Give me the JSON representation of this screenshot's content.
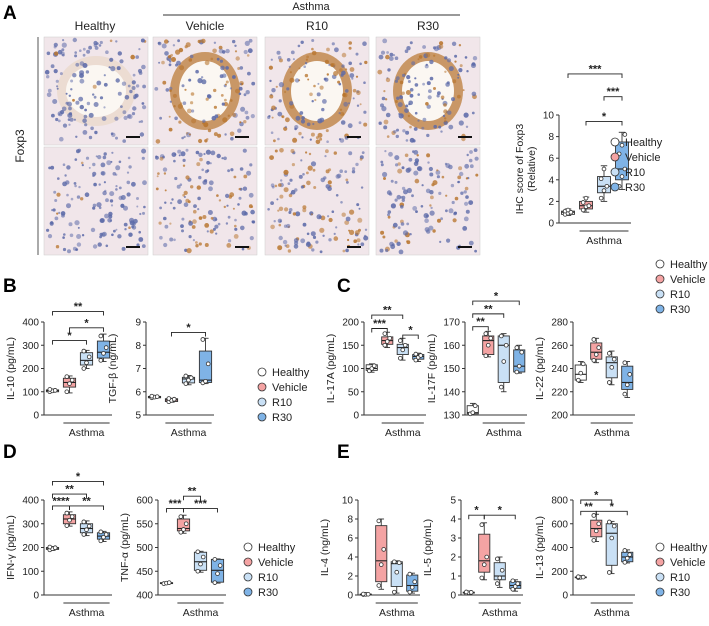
{
  "panels": {
    "A": "A",
    "B": "B",
    "C": "C",
    "D": "D",
    "E": "E"
  },
  "panel_A": {
    "group_headers": [
      "Healthy",
      "Vehicle",
      "R10",
      "R30"
    ],
    "asthma_label": "Asthma",
    "row_label": "Foxp3"
  },
  "legend": {
    "healthy": "Healthy",
    "vehicle": "Vehicle",
    "r10": "R10",
    "r30": "R30"
  },
  "colors": {
    "healthy": "#ffffff",
    "vehicle": "#f4a3a3",
    "r10": "#c9e0f5",
    "r30": "#7fb3e6",
    "tissue_bg": "#f1e6ea",
    "stain": "#b8752e",
    "nuclei": "#5c6aa8"
  },
  "chart_data": [
    {
      "id": "ihc",
      "type": "box",
      "ylabel": "IHC score of Foxp3 (Relative)",
      "ylabel_lines": [
        "IHC score of Foxp3",
        "(Relative)"
      ],
      "ylim": [
        0,
        10
      ],
      "yticks": [
        0,
        2,
        4,
        6,
        8,
        10
      ],
      "groups": [
        "Healthy",
        "Vehicle",
        "R10",
        "R30"
      ],
      "asthma_label": "Asthma",
      "boxes": [
        {
          "min": 0.7,
          "q1": 0.8,
          "median": 1.0,
          "q3": 1.1,
          "max": 1.3,
          "points": [
            0.8,
            0.9,
            1.0,
            1.1,
            1.2
          ]
        },
        {
          "min": 1.0,
          "q1": 1.3,
          "median": 1.6,
          "q3": 2.0,
          "max": 2.4,
          "points": [
            1.2,
            1.5,
            1.6,
            1.9,
            2.3
          ]
        },
        {
          "min": 2.0,
          "q1": 2.8,
          "median": 3.4,
          "q3": 4.3,
          "max": 5.3,
          "points": [
            2.3,
            3.0,
            3.4,
            4.1,
            5.0
          ]
        },
        {
          "min": 3.1,
          "q1": 4.0,
          "median": 5.0,
          "q3": 7.5,
          "max": 8.4,
          "points": [
            3.4,
            4.3,
            5.0,
            6.4,
            7.2,
            8.2
          ]
        }
      ],
      "significance": [
        {
          "from": 1,
          "to": 3,
          "stars": "*",
          "y": 9.4
        },
        {
          "from": 2,
          "to": 3,
          "stars": "***",
          "y": 11.7
        },
        {
          "from": 0,
          "to": 3,
          "stars": "***",
          "y": 13.8
        }
      ]
    },
    {
      "id": "il10",
      "type": "box",
      "ylabel": "IL-10 (pg/mL)",
      "ylabel_lines": [
        "IL-10 (pg/mL)"
      ],
      "ylim": [
        0,
        400
      ],
      "yticks": [
        0,
        100,
        200,
        300,
        400
      ],
      "groups": [
        "Healthy",
        "Vehicle",
        "R10",
        "R30"
      ],
      "asthma_label": "Asthma",
      "boxes": [
        {
          "min": 98,
          "q1": 100,
          "median": 105,
          "q3": 108,
          "max": 112,
          "points": [
            100,
            104,
            106,
            110
          ]
        },
        {
          "min": 95,
          "q1": 120,
          "median": 140,
          "q3": 158,
          "max": 168,
          "points": [
            100,
            135,
            150,
            165
          ]
        },
        {
          "min": 200,
          "q1": 215,
          "median": 235,
          "q3": 268,
          "max": 278,
          "points": [
            200,
            225,
            250,
            275
          ]
        },
        {
          "min": 230,
          "q1": 245,
          "median": 270,
          "q3": 318,
          "max": 348,
          "points": [
            235,
            265,
            290,
            340
          ]
        }
      ],
      "significance": [
        {
          "from": 0,
          "to": 2,
          "stars": "*",
          "y": 320
        },
        {
          "from": 1,
          "to": 3,
          "stars": "*",
          "y": 375
        },
        {
          "from": 0,
          "to": 3,
          "stars": "**",
          "y": 445
        }
      ]
    },
    {
      "id": "tgfb",
      "type": "box",
      "ylabel": "TGF-β (ng/mL)",
      "ylabel_lines": [
        "TGF-β (ng/mL)"
      ],
      "ylim": [
        5,
        9
      ],
      "yticks": [
        5,
        6,
        7,
        8,
        9
      ],
      "groups": [
        "Healthy",
        "Vehicle",
        "R10",
        "R30"
      ],
      "asthma_label": "Asthma",
      "boxes": [
        {
          "min": 5.72,
          "q1": 5.74,
          "median": 5.78,
          "q3": 5.8,
          "max": 5.83,
          "points": [
            5.74,
            5.77,
            5.79,
            5.81
          ]
        },
        {
          "min": 5.55,
          "q1": 5.58,
          "median": 5.65,
          "q3": 5.7,
          "max": 5.72,
          "points": [
            5.57,
            5.63,
            5.68,
            5.71
          ]
        },
        {
          "min": 6.3,
          "q1": 6.38,
          "median": 6.55,
          "q3": 6.62,
          "max": 6.7,
          "points": [
            6.35,
            6.5,
            6.6,
            6.68
          ]
        },
        {
          "min": 6.35,
          "q1": 6.4,
          "median": 6.5,
          "q3": 7.75,
          "max": 8.3,
          "points": [
            6.38,
            6.45,
            7.2,
            8.25
          ]
        }
      ],
      "significance": [
        {
          "from": 1,
          "to": 3,
          "stars": "*",
          "y": 8.55
        }
      ]
    },
    {
      "id": "il17a",
      "type": "box",
      "ylabel": "IL-17A (pg/mL)",
      "ylabel_lines": [
        "IL-17A (pg/mL)"
      ],
      "ylim": [
        0,
        200
      ],
      "yticks": [
        0,
        50,
        100,
        150,
        200
      ],
      "groups": [
        "Healthy",
        "Vehicle",
        "R10",
        "R30"
      ],
      "asthma_label": "Asthma",
      "boxes": [
        {
          "min": 92,
          "q1": 96,
          "median": 100,
          "q3": 108,
          "max": 110,
          "points": [
            95,
            100,
            106
          ]
        },
        {
          "min": 145,
          "q1": 152,
          "median": 160,
          "q3": 168,
          "max": 178,
          "points": [
            150,
            158,
            165,
            175
          ]
        },
        {
          "min": 118,
          "q1": 130,
          "median": 145,
          "q3": 152,
          "max": 165,
          "points": [
            122,
            140,
            150,
            160
          ]
        },
        {
          "min": 115,
          "q1": 120,
          "median": 126,
          "q3": 130,
          "max": 133,
          "points": [
            118,
            124,
            128,
            131
          ]
        }
      ],
      "significance": [
        {
          "from": 2,
          "to": 3,
          "stars": "*",
          "y": 172
        },
        {
          "from": 0,
          "to": 1,
          "stars": "***",
          "y": 186
        },
        {
          "from": 0,
          "to": 2,
          "stars": "**",
          "y": 215
        }
      ]
    },
    {
      "id": "il17f",
      "type": "box",
      "ylabel": "IL-17F (pg/mL)",
      "ylabel_lines": [
        "IL-17F (pg/mL)"
      ],
      "ylim": [
        130,
        170
      ],
      "yticks": [
        130,
        140,
        150,
        160,
        170
      ],
      "groups": [
        "Healthy",
        "Vehicle",
        "R10",
        "R30"
      ],
      "asthma_label": "Asthma",
      "boxes": [
        {
          "min": 130,
          "q1": 130.5,
          "median": 131,
          "q3": 134,
          "max": 135,
          "points": [
            130.5,
            131,
            134
          ]
        },
        {
          "min": 155,
          "q1": 156,
          "median": 162,
          "q3": 164,
          "max": 166,
          "points": [
            155.5,
            160,
            163,
            165
          ]
        },
        {
          "min": 140,
          "q1": 144,
          "median": 160,
          "q3": 164,
          "max": 165,
          "points": [
            142,
            153,
            160,
            164
          ]
        },
        {
          "min": 148,
          "q1": 148.5,
          "median": 151,
          "q3": 158,
          "max": 160,
          "points": [
            148.5,
            151,
            157,
            159
          ]
        }
      ],
      "significance": [
        {
          "from": 0,
          "to": 1,
          "stars": "**",
          "y": 168
        },
        {
          "from": 0,
          "to": 2,
          "stars": "**",
          "y": 173.5
        },
        {
          "from": 0,
          "to": 3,
          "stars": "*",
          "y": 179
        }
      ]
    },
    {
      "id": "il22",
      "type": "box",
      "ylabel": "IL-22 (pg/mL)",
      "ylabel_lines": [
        "IL-22 (pg/mL)"
      ],
      "ylim": [
        200,
        280
      ],
      "yticks": [
        200,
        220,
        240,
        260,
        280
      ],
      "groups": [
        "Healthy",
        "Vehicle",
        "R10",
        "R30"
      ],
      "asthma_label": "Asthma",
      "boxes": [
        {
          "min": 228,
          "q1": 230,
          "median": 235,
          "q3": 243,
          "max": 246,
          "points": [
            230,
            236,
            244
          ]
        },
        {
          "min": 245,
          "q1": 248,
          "median": 254,
          "q3": 262,
          "max": 266,
          "points": [
            247,
            252,
            258,
            265
          ]
        },
        {
          "min": 226,
          "q1": 232,
          "median": 245,
          "q3": 250,
          "max": 255,
          "points": [
            228,
            241,
            248,
            253
          ]
        },
        {
          "min": 215,
          "q1": 222,
          "median": 228,
          "q3": 242,
          "max": 246,
          "points": [
            218,
            226,
            235,
            245
          ]
        }
      ],
      "significance": []
    },
    {
      "id": "ifng",
      "type": "box",
      "ylabel": "IFN-γ (pg/mL)",
      "ylabel_lines": [
        "IFN-γ (pg/mL)"
      ],
      "ylim": [
        0,
        400
      ],
      "yticks": [
        0,
        100,
        200,
        300,
        400
      ],
      "groups": [
        "Healthy",
        "Vehicle",
        "R10",
        "R30"
      ],
      "asthma_label": "Asthma",
      "boxes": [
        {
          "min": 188,
          "q1": 192,
          "median": 197,
          "q3": 200,
          "max": 204,
          "points": [
            190,
            195,
            199,
            202
          ]
        },
        {
          "min": 290,
          "q1": 300,
          "median": 320,
          "q3": 338,
          "max": 350,
          "points": [
            292,
            315,
            330,
            345
          ]
        },
        {
          "min": 250,
          "q1": 262,
          "median": 280,
          "q3": 300,
          "max": 312,
          "points": [
            255,
            275,
            290,
            308
          ]
        },
        {
          "min": 225,
          "q1": 235,
          "median": 248,
          "q3": 262,
          "max": 268,
          "points": [
            228,
            243,
            255,
            266
          ]
        }
      ],
      "significance": [
        {
          "from": 0,
          "to": 1,
          "stars": "****",
          "y": 375
        },
        {
          "from": 1,
          "to": 3,
          "stars": "**",
          "y": 375
        },
        {
          "from": 0,
          "to": 2,
          "stars": "**",
          "y": 425
        },
        {
          "from": 0,
          "to": 3,
          "stars": "*",
          "y": 478
        }
      ]
    },
    {
      "id": "tnfa",
      "type": "box",
      "ylabel": "TNF-α (pg/mL)",
      "ylabel_lines": [
        "TNF-α (pg/mL)"
      ],
      "ylim": [
        400,
        600
      ],
      "yticks": [
        400,
        450,
        500,
        550,
        600
      ],
      "groups": [
        "Healthy",
        "Vehicle",
        "R10",
        "R30"
      ],
      "asthma_label": "Asthma",
      "boxes": [
        {
          "min": 424,
          "q1": 424,
          "median": 425,
          "q3": 426,
          "max": 426,
          "points": [
            424,
            425,
            426
          ]
        },
        {
          "min": 530,
          "q1": 535,
          "median": 540,
          "q3": 560,
          "max": 568,
          "points": [
            532,
            538,
            550,
            565
          ]
        },
        {
          "min": 448,
          "q1": 452,
          "median": 470,
          "q3": 490,
          "max": 492,
          "points": [
            450,
            465,
            480,
            491
          ]
        },
        {
          "min": 425,
          "q1": 427,
          "median": 452,
          "q3": 475,
          "max": 476,
          "points": [
            426,
            445,
            462,
            475
          ]
        }
      ],
      "significance": [
        {
          "from": 0,
          "to": 1,
          "stars": "***",
          "y": 582
        },
        {
          "from": 1,
          "to": 3,
          "stars": "***",
          "y": 582
        },
        {
          "from": 1,
          "to": 2,
          "stars": "**",
          "y": 608
        }
      ]
    },
    {
      "id": "il4",
      "type": "box",
      "ylabel": "IL-4 (ng/mL)",
      "ylabel_lines": [
        "IL-4 (ng/mL)"
      ],
      "ylim": [
        0,
        10
      ],
      "yticks": [
        0,
        2,
        4,
        6,
        8,
        10
      ],
      "groups": [
        "Healthy",
        "Vehicle",
        "R10",
        "R30"
      ],
      "asthma_label": "Asthma",
      "boxes": [
        {
          "min": 0.05,
          "q1": 0.05,
          "median": 0.05,
          "q3": 0.1,
          "max": 0.1,
          "points": [
            0.05,
            0.07,
            0.08,
            0.1
          ]
        },
        {
          "min": 0.6,
          "q1": 1.4,
          "median": 3.6,
          "q3": 7.3,
          "max": 8.0,
          "points": [
            1.0,
            3.2,
            4.8,
            7.8
          ]
        },
        {
          "min": 0.2,
          "q1": 0.9,
          "median": 3.3,
          "q3": 3.5,
          "max": 3.6,
          "points": [
            0.3,
            2.4,
            3.4,
            3.5
          ]
        },
        {
          "min": 0.2,
          "q1": 0.4,
          "median": 1.0,
          "q3": 2.1,
          "max": 2.3,
          "points": [
            0.3,
            0.8,
            1.4,
            2.2
          ]
        }
      ],
      "significance": []
    },
    {
      "id": "il5",
      "type": "box",
      "ylabel": "IL-5 (pg/mL)",
      "ylabel_lines": [
        "IL-5 (pg/mL)"
      ],
      "ylim": [
        0,
        5
      ],
      "yticks": [
        0,
        1,
        2,
        3,
        4,
        5
      ],
      "groups": [
        "Healthy",
        "Vehicle",
        "R10",
        "R30"
      ],
      "asthma_label": "Asthma",
      "boxes": [
        {
          "min": 0.1,
          "q1": 0.1,
          "median": 0.12,
          "q3": 0.15,
          "max": 0.16,
          "points": [
            0.1,
            0.12,
            0.14,
            0.16
          ]
        },
        {
          "min": 0.8,
          "q1": 1.2,
          "median": 1.8,
          "q3": 3.2,
          "max": 3.8,
          "points": [
            0.9,
            1.6,
            2.0,
            3.7
          ]
        },
        {
          "min": 0.4,
          "q1": 0.8,
          "median": 1.0,
          "q3": 1.7,
          "max": 2.0,
          "points": [
            0.6,
            0.9,
            1.3,
            1.9
          ]
        },
        {
          "min": 0.2,
          "q1": 0.35,
          "median": 0.5,
          "q3": 0.7,
          "max": 0.8,
          "points": [
            0.3,
            0.45,
            0.6,
            0.75
          ]
        }
      ],
      "significance": [
        {
          "from": 0,
          "to": 1,
          "stars": "*",
          "y": 4.2
        },
        {
          "from": 1,
          "to": 3,
          "stars": "*",
          "y": 4.2
        }
      ]
    },
    {
      "id": "il13",
      "type": "box",
      "ylabel": "IL-13 (pg/mL)",
      "ylabel_lines": [
        "IL-13 (pg/mL)"
      ],
      "ylim": [
        0,
        800
      ],
      "yticks": [
        0,
        200,
        400,
        600,
        800
      ],
      "groups": [
        "Healthy",
        "Vehicle",
        "R10",
        "R30"
      ],
      "asthma_label": "Asthma",
      "boxes": [
        {
          "min": 145,
          "q1": 148,
          "median": 150,
          "q3": 152,
          "max": 155,
          "points": [
            146,
            149,
            151,
            154
          ]
        },
        {
          "min": 450,
          "q1": 490,
          "median": 560,
          "q3": 630,
          "max": 680,
          "points": [
            460,
            540,
            600,
            670
          ]
        },
        {
          "min": 180,
          "q1": 250,
          "median": 520,
          "q3": 600,
          "max": 620,
          "points": [
            190,
            480,
            580,
            615
          ]
        },
        {
          "min": 270,
          "q1": 280,
          "median": 320,
          "q3": 360,
          "max": 380,
          "points": [
            275,
            310,
            340,
            375
          ]
        }
      ],
      "significance": [
        {
          "from": 0,
          "to": 1,
          "stars": "**",
          "y": 705
        },
        {
          "from": 1,
          "to": 3,
          "stars": "*",
          "y": 705
        },
        {
          "from": 0,
          "to": 2,
          "stars": "*",
          "y": 800
        }
      ]
    }
  ]
}
